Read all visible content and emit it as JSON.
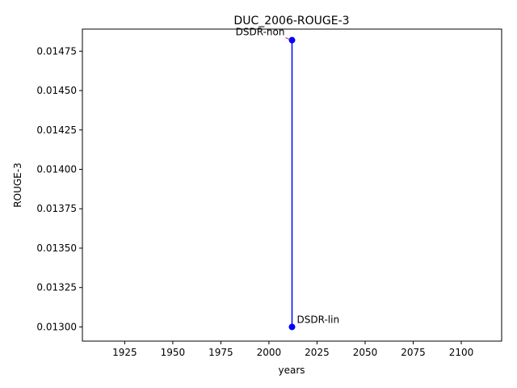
{
  "chart_data": {
    "type": "line",
    "title": "DUC_2006-ROUGE-3",
    "xlabel": "years",
    "ylabel": "ROUGE-3",
    "xlim": [
      1903,
      2121
    ],
    "ylim": [
      0.01291,
      0.01489
    ],
    "x_ticks": [
      "1925",
      "1950",
      "1975",
      "2000",
      "2025",
      "2050",
      "2075",
      "2100"
    ],
    "x_tick_values": [
      1925,
      1950,
      1975,
      2000,
      2025,
      2050,
      2075,
      2100
    ],
    "y_ticks": [
      "0.01300",
      "0.01325",
      "0.01350",
      "0.01375",
      "0.01400",
      "0.01425",
      "0.01450",
      "0.01475"
    ],
    "y_tick_values": [
      0.013,
      0.01325,
      0.0135,
      0.01375,
      0.014,
      0.01425,
      0.0145,
      0.01475
    ],
    "grid": false,
    "series": [
      {
        "color": "#0000ff",
        "points": [
          {
            "x": 2012,
            "y": 0.01482,
            "label": "DSDR-non"
          },
          {
            "x": 2012,
            "y": 0.013,
            "label": "DSDR-lin"
          }
        ]
      }
    ]
  }
}
